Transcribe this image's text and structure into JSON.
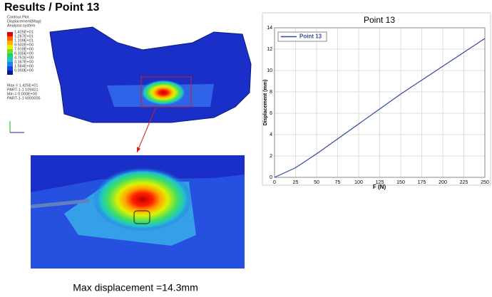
{
  "title": "Results / Point 13",
  "caption": "Max displacement =14.3mm",
  "contour_legend": {
    "header": [
      "Contour Plot",
      "Displacement(Mag)",
      "Analysis system"
    ],
    "levels": [
      "1.425E+01",
      "1.267E+01",
      "1.109E+01",
      "9.502E+00",
      "7.918E+00",
      "6.335E+00",
      "4.751E+00",
      "3.167E+00",
      "1.584E+00",
      "0.000E+00"
    ],
    "footer": [
      "Max = 1.425E+01",
      "PART-1-1 109421",
      "Min = 0.000E+00",
      "PART-1-1 6000005"
    ]
  },
  "chart_data": {
    "type": "line",
    "title": "Point 13",
    "x_label": "F (N)",
    "y_label": "Displacement (mm)",
    "x": [
      0,
      25,
      50,
      75,
      100,
      125,
      150,
      175,
      200,
      225,
      250
    ],
    "series": [
      {
        "name": "Point 13",
        "color": "#2e4a9e",
        "values": [
          0,
          0.9,
          2.2,
          3.6,
          5.0,
          6.4,
          7.8,
          9.1,
          10.4,
          11.7,
          13.0
        ]
      }
    ],
    "xlim": [
      0,
      250
    ],
    "xticks": [
      0,
      25,
      50,
      75,
      100,
      125,
      150,
      175,
      200,
      225,
      250
    ],
    "ylim": [
      0,
      14
    ],
    "yticks": [
      0,
      2,
      4,
      6,
      8,
      10,
      12,
      14
    ],
    "grid": true,
    "legend": "upper left"
  }
}
